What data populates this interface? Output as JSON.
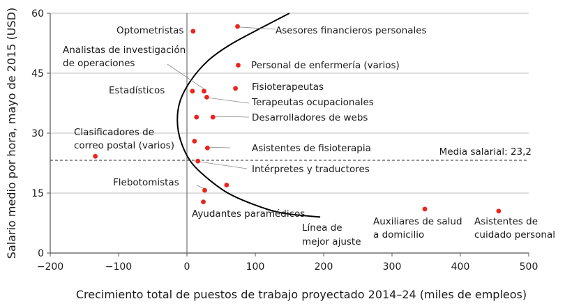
{
  "chart_data": {
    "type": "scatter",
    "title": "",
    "xlabel": "Crecimiento total de puestos de trabajo proyectado 2014–24 (miles de empleos)",
    "ylabel": "Salario medio por hora, mayo de 2015 (USD)",
    "xlim": [
      -200,
      500
    ],
    "ylim": [
      0,
      60
    ],
    "xticks": [
      -200,
      -100,
      0,
      100,
      200,
      300,
      400,
      500
    ],
    "yticks": [
      0,
      15,
      30,
      45,
      60
    ],
    "xtick_labels": [
      "−200",
      "−100",
      "0",
      "100",
      "200",
      "300",
      "400",
      "500"
    ],
    "ytick_labels": [
      "0",
      "15",
      "30",
      "45",
      "60"
    ],
    "grid": "horizontal",
    "colors": {
      "points": "#e8251f",
      "grid": "#bdbdbd",
      "line": "#000000",
      "axis": "#555555"
    },
    "points": [
      {
        "x": 9,
        "y": 55.5,
        "label": "Optometristas"
      },
      {
        "x": 74,
        "y": 56.7,
        "label": "Asesores financieros personales"
      },
      {
        "x": 25,
        "y": 40.5,
        "label": "Analistas de investigación de operaciones"
      },
      {
        "x": 75,
        "y": 47.0,
        "label": "Personal de enfermería (varios)"
      },
      {
        "x": 8,
        "y": 40.5,
        "label": "Estadísticos"
      },
      {
        "x": 71,
        "y": 41.2,
        "label": "Fisioterapeutas"
      },
      {
        "x": 29,
        "y": 39.0,
        "label": "Terapeutas ocupacionales"
      },
      {
        "x": 38,
        "y": 34.0,
        "label": "Desarrolladores de webs"
      },
      {
        "x": 14,
        "y": 34.0,
        "label": ""
      },
      {
        "x": -134,
        "y": 24.2,
        "label": "Clasificadores de correo postal (varios)"
      },
      {
        "x": 11,
        "y": 28.0,
        "label": ""
      },
      {
        "x": 30,
        "y": 26.3,
        "label": "Asistentes de fisioterapia"
      },
      {
        "x": 16,
        "y": 23.0,
        "label": "Intérpretes y traductores"
      },
      {
        "x": 26,
        "y": 15.7,
        "label": "Flebotomistas"
      },
      {
        "x": 58,
        "y": 17.0,
        "label": ""
      },
      {
        "x": 24,
        "y": 12.8,
        "label": "Ayudantes paramédicos"
      },
      {
        "x": 348,
        "y": 11.0,
        "label": "Auxiliares de salud a domicilio"
      },
      {
        "x": 456,
        "y": 10.5,
        "label": "Asistentes de cuidado personal"
      }
    ],
    "fit_line": {
      "label": "Línea de mejor ajuste",
      "x": [
        150,
        105,
        62,
        30,
        5,
        -10,
        -14,
        -9,
        5,
        28,
        60,
        100,
        140,
        195
      ],
      "y": [
        60,
        56,
        52,
        48,
        43,
        38,
        33,
        28,
        23,
        19,
        15,
        12,
        10,
        9
      ]
    },
    "reference_line": {
      "y": 23.2,
      "label": "Media salarial: 23,2"
    }
  }
}
